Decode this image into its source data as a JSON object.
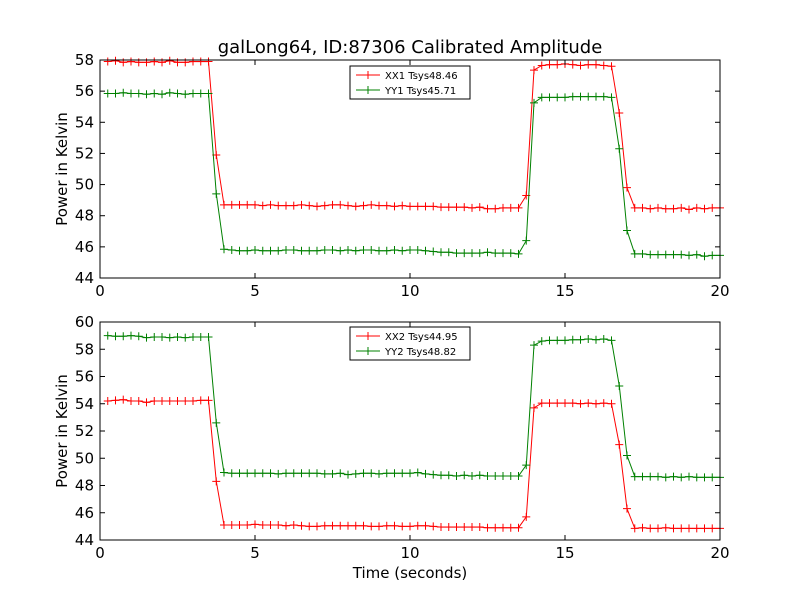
{
  "figure": {
    "title": "galLong64, ID:87306 Calibrated Amplitude",
    "xlabel": "Time (seconds)"
  },
  "chart_data": [
    {
      "type": "line",
      "title": "galLong64, ID:87306 Calibrated Amplitude",
      "xlabel": "",
      "ylabel": "Power in Kelvin",
      "xlim": [
        0,
        20
      ],
      "ylim": [
        44,
        58
      ],
      "xticks": [
        "0",
        "5",
        "10",
        "15",
        "20"
      ],
      "yticks": [
        "44",
        "46",
        "48",
        "50",
        "52",
        "54",
        "56",
        "58"
      ],
      "grid": false,
      "legend_position": "top-center",
      "x": [
        0.25,
        0.5,
        0.75,
        1.0,
        1.25,
        1.5,
        1.75,
        2.0,
        2.25,
        2.5,
        2.75,
        3.0,
        3.25,
        3.5,
        3.75,
        4.0,
        4.25,
        4.5,
        4.75,
        5.0,
        5.25,
        5.5,
        5.75,
        6.0,
        6.25,
        6.5,
        6.75,
        7.0,
        7.25,
        7.5,
        7.75,
        8.0,
        8.25,
        8.5,
        8.75,
        9.0,
        9.25,
        9.5,
        9.75,
        10.0,
        10.25,
        10.5,
        10.75,
        11.0,
        11.25,
        11.5,
        11.75,
        12.0,
        12.25,
        12.5,
        12.75,
        13.0,
        13.25,
        13.5,
        13.75,
        14.0,
        14.25,
        14.5,
        14.75,
        15.0,
        15.25,
        15.5,
        15.75,
        16.0,
        16.25,
        16.5,
        16.75,
        17.0,
        17.25,
        17.5,
        17.75,
        18.0,
        18.25,
        18.5,
        18.75,
        19.0,
        19.25,
        19.5,
        19.75,
        20.0
      ],
      "series": [
        {
          "name": "XX1 Tsys48.46",
          "color": "#ff0000",
          "values": [
            57.9,
            57.95,
            57.85,
            57.9,
            57.85,
            57.85,
            57.9,
            57.85,
            57.95,
            57.85,
            57.85,
            57.9,
            57.9,
            57.9,
            51.9,
            48.7,
            48.7,
            48.7,
            48.7,
            48.7,
            48.65,
            48.7,
            48.65,
            48.65,
            48.65,
            48.7,
            48.65,
            48.6,
            48.65,
            48.7,
            48.7,
            48.65,
            48.6,
            48.65,
            48.7,
            48.65,
            48.65,
            48.6,
            48.65,
            48.6,
            48.6,
            48.6,
            48.6,
            48.55,
            48.55,
            48.55,
            48.55,
            48.5,
            48.55,
            48.45,
            48.45,
            48.5,
            48.5,
            48.5,
            49.3,
            57.35,
            57.65,
            57.7,
            57.7,
            57.75,
            57.7,
            57.65,
            57.7,
            57.7,
            57.65,
            57.6,
            54.6,
            49.8,
            48.5,
            48.5,
            48.45,
            48.5,
            48.45,
            48.45,
            48.5,
            48.4,
            48.5,
            48.45,
            48.5,
            48.5
          ]
        },
        {
          "name": "YY1 Tsys45.71",
          "color": "#008000",
          "values": [
            55.85,
            55.85,
            55.9,
            55.85,
            55.85,
            55.8,
            55.85,
            55.8,
            55.9,
            55.85,
            55.8,
            55.85,
            55.85,
            55.85,
            49.4,
            45.85,
            45.8,
            45.75,
            45.75,
            45.8,
            45.75,
            45.75,
            45.75,
            45.8,
            45.8,
            45.75,
            45.75,
            45.75,
            45.8,
            45.8,
            45.75,
            45.8,
            45.75,
            45.8,
            45.8,
            45.75,
            45.75,
            45.8,
            45.75,
            45.8,
            45.8,
            45.75,
            45.7,
            45.65,
            45.65,
            45.6,
            45.6,
            45.6,
            45.6,
            45.65,
            45.6,
            45.6,
            45.6,
            45.55,
            46.4,
            55.25,
            55.6,
            55.6,
            55.6,
            55.6,
            55.65,
            55.65,
            55.65,
            55.65,
            55.65,
            55.6,
            52.3,
            47.05,
            45.55,
            45.55,
            45.5,
            45.5,
            45.5,
            45.5,
            45.5,
            45.45,
            45.5,
            45.4,
            45.45,
            45.45
          ]
        }
      ]
    },
    {
      "type": "line",
      "title": "",
      "xlabel": "Time (seconds)",
      "ylabel": "Power in Kelvin",
      "xlim": [
        0,
        20
      ],
      "ylim": [
        44,
        60
      ],
      "xticks": [
        "0",
        "5",
        "10",
        "15",
        "20"
      ],
      "yticks": [
        "44",
        "46",
        "48",
        "50",
        "52",
        "54",
        "56",
        "58",
        "60"
      ],
      "grid": false,
      "legend_position": "top-center",
      "x": [
        0.25,
        0.5,
        0.75,
        1.0,
        1.25,
        1.5,
        1.75,
        2.0,
        2.25,
        2.5,
        2.75,
        3.0,
        3.25,
        3.5,
        3.75,
        4.0,
        4.25,
        4.5,
        4.75,
        5.0,
        5.25,
        5.5,
        5.75,
        6.0,
        6.25,
        6.5,
        6.75,
        7.0,
        7.25,
        7.5,
        7.75,
        8.0,
        8.25,
        8.5,
        8.75,
        9.0,
        9.25,
        9.5,
        9.75,
        10.0,
        10.25,
        10.5,
        10.75,
        11.0,
        11.25,
        11.5,
        11.75,
        12.0,
        12.25,
        12.5,
        12.75,
        13.0,
        13.25,
        13.5,
        13.75,
        14.0,
        14.25,
        14.5,
        14.75,
        15.0,
        15.25,
        15.5,
        15.75,
        16.0,
        16.25,
        16.5,
        16.75,
        17.0,
        17.25,
        17.5,
        17.75,
        18.0,
        18.25,
        18.5,
        18.75,
        19.0,
        19.25,
        19.5,
        19.75,
        20.0
      ],
      "series": [
        {
          "name": "XX2 Tsys44.95",
          "color": "#ff0000",
          "values": [
            54.2,
            54.25,
            54.3,
            54.2,
            54.2,
            54.1,
            54.2,
            54.2,
            54.2,
            54.2,
            54.2,
            54.2,
            54.25,
            54.25,
            48.3,
            45.1,
            45.1,
            45.1,
            45.1,
            45.15,
            45.1,
            45.1,
            45.1,
            45.05,
            45.1,
            45.05,
            45.0,
            45.0,
            45.05,
            45.05,
            45.05,
            45.05,
            45.05,
            45.05,
            45.0,
            45.0,
            45.05,
            45.05,
            45.0,
            45.0,
            45.05,
            45.05,
            45.0,
            44.95,
            44.95,
            44.95,
            44.95,
            44.95,
            44.95,
            44.9,
            44.9,
            44.9,
            44.9,
            44.9,
            45.7,
            53.7,
            54.05,
            54.05,
            54.05,
            54.05,
            54.05,
            54.0,
            54.05,
            54.0,
            54.05,
            54.0,
            51.0,
            46.3,
            44.85,
            44.9,
            44.85,
            44.85,
            44.9,
            44.85,
            44.85,
            44.85,
            44.85,
            44.85,
            44.85,
            44.85
          ]
        },
        {
          "name": "YY2 Tsys48.82",
          "color": "#008000",
          "values": [
            59.0,
            58.95,
            58.95,
            59.0,
            58.95,
            58.85,
            58.9,
            58.9,
            58.85,
            58.9,
            58.85,
            58.9,
            58.9,
            58.9,
            52.6,
            48.95,
            48.9,
            48.9,
            48.9,
            48.9,
            48.9,
            48.9,
            48.85,
            48.9,
            48.9,
            48.9,
            48.9,
            48.9,
            48.85,
            48.85,
            48.9,
            48.8,
            48.85,
            48.9,
            48.9,
            48.85,
            48.9,
            48.9,
            48.9,
            48.9,
            48.95,
            48.85,
            48.8,
            48.75,
            48.75,
            48.7,
            48.75,
            48.7,
            48.75,
            48.7,
            48.7,
            48.7,
            48.7,
            48.7,
            49.5,
            58.3,
            58.6,
            58.65,
            58.65,
            58.65,
            58.7,
            58.7,
            58.75,
            58.7,
            58.75,
            58.65,
            55.3,
            50.2,
            48.65,
            48.65,
            48.65,
            48.65,
            48.6,
            48.65,
            48.6,
            48.65,
            48.6,
            48.6,
            48.6,
            48.6
          ]
        }
      ]
    }
  ]
}
